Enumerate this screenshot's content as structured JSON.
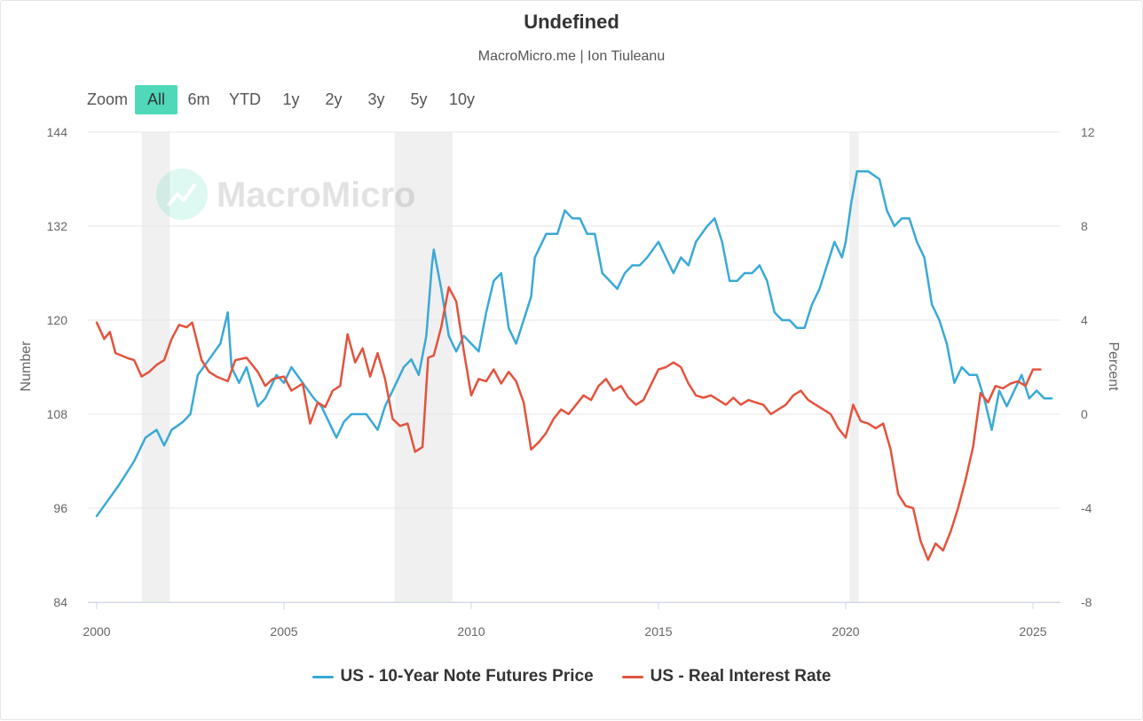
{
  "chart": {
    "title": "Undefined",
    "subtitle": "MacroMicro.me | Ion Tiuleanu",
    "watermark": "MacroMicro"
  },
  "zoom": {
    "label": "Zoom",
    "buttons": [
      "All",
      "6m",
      "YTD",
      "1y",
      "2y",
      "3y",
      "5y",
      "10y"
    ],
    "active": "All"
  },
  "colors": {
    "series_blue": "#3aa9d6",
    "series_red": "#e2533d",
    "zoom_active": "#4fd9b9",
    "recession": "#f0f0f0",
    "grid": "#e6e6e6"
  },
  "chart_data": {
    "type": "line",
    "x_axis": {
      "ticks": [
        "2000",
        "2005",
        "2010",
        "2015",
        "2020",
        "2025"
      ],
      "range": [
        2000.0,
        2025.7
      ]
    },
    "y_left": {
      "label": "Number",
      "ticks": [
        84,
        96,
        108,
        120,
        132,
        144
      ],
      "range": [
        84,
        144
      ]
    },
    "y_right": {
      "label": "Percent",
      "ticks": [
        -8,
        -4,
        0,
        4,
        8,
        12
      ],
      "range": [
        -8,
        12
      ]
    },
    "shaded_periods": [
      [
        2001.2,
        2001.95
      ],
      [
        2007.95,
        2009.5
      ],
      [
        2020.1,
        2020.35
      ]
    ],
    "legend_position": "bottom-center",
    "grid": true,
    "series": [
      {
        "name": "US - 10-Year Note Futures Price",
        "axis": "left",
        "color": "#3aa9d6",
        "points": [
          [
            2000.0,
            95
          ],
          [
            2000.3,
            97
          ],
          [
            2000.6,
            99
          ],
          [
            2001.0,
            102
          ],
          [
            2001.3,
            105
          ],
          [
            2001.6,
            106
          ],
          [
            2001.8,
            104
          ],
          [
            2002.0,
            106
          ],
          [
            2002.3,
            107
          ],
          [
            2002.5,
            108
          ],
          [
            2002.7,
            113
          ],
          [
            2003.0,
            115
          ],
          [
            2003.3,
            117
          ],
          [
            2003.5,
            121
          ],
          [
            2003.6,
            114
          ],
          [
            2003.8,
            112
          ],
          [
            2004.0,
            114
          ],
          [
            2004.3,
            109
          ],
          [
            2004.5,
            110
          ],
          [
            2004.8,
            113
          ],
          [
            2005.0,
            112
          ],
          [
            2005.2,
            114
          ],
          [
            2005.5,
            112
          ],
          [
            2005.8,
            110
          ],
          [
            2006.0,
            109
          ],
          [
            2006.2,
            107
          ],
          [
            2006.4,
            105
          ],
          [
            2006.6,
            107
          ],
          [
            2006.8,
            108
          ],
          [
            2007.0,
            108
          ],
          [
            2007.2,
            108
          ],
          [
            2007.5,
            106
          ],
          [
            2007.7,
            109
          ],
          [
            2007.9,
            111
          ],
          [
            2008.0,
            112
          ],
          [
            2008.2,
            114
          ],
          [
            2008.4,
            115
          ],
          [
            2008.6,
            113
          ],
          [
            2008.8,
            118
          ],
          [
            2008.95,
            127
          ],
          [
            2009.0,
            129
          ],
          [
            2009.2,
            124
          ],
          [
            2009.4,
            118
          ],
          [
            2009.6,
            116
          ],
          [
            2009.8,
            118
          ],
          [
            2010.0,
            117
          ],
          [
            2010.2,
            116
          ],
          [
            2010.4,
            121
          ],
          [
            2010.6,
            125
          ],
          [
            2010.8,
            126
          ],
          [
            2011.0,
            119
          ],
          [
            2011.2,
            117
          ],
          [
            2011.4,
            120
          ],
          [
            2011.6,
            123
          ],
          [
            2011.7,
            128
          ],
          [
            2011.9,
            130
          ],
          [
            2012.0,
            131
          ],
          [
            2012.3,
            131
          ],
          [
            2012.5,
            134
          ],
          [
            2012.7,
            133
          ],
          [
            2012.9,
            133
          ],
          [
            2013.1,
            131
          ],
          [
            2013.3,
            131
          ],
          [
            2013.5,
            126
          ],
          [
            2013.7,
            125
          ],
          [
            2013.9,
            124
          ],
          [
            2014.1,
            126
          ],
          [
            2014.3,
            127
          ],
          [
            2014.5,
            127
          ],
          [
            2014.7,
            128
          ],
          [
            2015.0,
            130
          ],
          [
            2015.2,
            128
          ],
          [
            2015.4,
            126
          ],
          [
            2015.6,
            128
          ],
          [
            2015.8,
            127
          ],
          [
            2016.0,
            130
          ],
          [
            2016.3,
            132
          ],
          [
            2016.5,
            133
          ],
          [
            2016.7,
            130
          ],
          [
            2016.9,
            125
          ],
          [
            2017.1,
            125
          ],
          [
            2017.3,
            126
          ],
          [
            2017.5,
            126
          ],
          [
            2017.7,
            127
          ],
          [
            2017.9,
            125
          ],
          [
            2018.1,
            121
          ],
          [
            2018.3,
            120
          ],
          [
            2018.5,
            120
          ],
          [
            2018.7,
            119
          ],
          [
            2018.9,
            119
          ],
          [
            2019.1,
            122
          ],
          [
            2019.3,
            124
          ],
          [
            2019.5,
            127
          ],
          [
            2019.7,
            130
          ],
          [
            2019.9,
            128
          ],
          [
            2020.0,
            130
          ],
          [
            2020.15,
            135
          ],
          [
            2020.3,
            139
          ],
          [
            2020.6,
            139
          ],
          [
            2020.9,
            138
          ],
          [
            2021.1,
            134
          ],
          [
            2021.3,
            132
          ],
          [
            2021.5,
            133
          ],
          [
            2021.7,
            133
          ],
          [
            2021.9,
            130
          ],
          [
            2022.1,
            128
          ],
          [
            2022.3,
            122
          ],
          [
            2022.5,
            120
          ],
          [
            2022.7,
            117
          ],
          [
            2022.9,
            112
          ],
          [
            2023.1,
            114
          ],
          [
            2023.3,
            113
          ],
          [
            2023.5,
            113
          ],
          [
            2023.7,
            110
          ],
          [
            2023.9,
            106
          ],
          [
            2024.1,
            111
          ],
          [
            2024.3,
            109
          ],
          [
            2024.5,
            111
          ],
          [
            2024.7,
            113
          ],
          [
            2024.9,
            110
          ],
          [
            2025.1,
            111
          ],
          [
            2025.3,
            110
          ],
          [
            2025.5,
            110
          ]
        ]
      },
      {
        "name": "US - Real Interest Rate",
        "axis": "right",
        "color": "#e2533d",
        "points": [
          [
            2000.0,
            3.9
          ],
          [
            2000.2,
            3.2
          ],
          [
            2000.35,
            3.5
          ],
          [
            2000.5,
            2.6
          ],
          [
            2000.8,
            2.4
          ],
          [
            2001.0,
            2.3
          ],
          [
            2001.2,
            1.6
          ],
          [
            2001.4,
            1.8
          ],
          [
            2001.6,
            2.1
          ],
          [
            2001.8,
            2.3
          ],
          [
            2002.0,
            3.2
          ],
          [
            2002.2,
            3.8
          ],
          [
            2002.4,
            3.7
          ],
          [
            2002.55,
            3.9
          ],
          [
            2002.8,
            2.3
          ],
          [
            2003.0,
            1.8
          ],
          [
            2003.2,
            1.6
          ],
          [
            2003.5,
            1.4
          ],
          [
            2003.7,
            2.3
          ],
          [
            2004.0,
            2.4
          ],
          [
            2004.3,
            1.8
          ],
          [
            2004.5,
            1.2
          ],
          [
            2004.7,
            1.5
          ],
          [
            2005.0,
            1.6
          ],
          [
            2005.2,
            1.0
          ],
          [
            2005.5,
            1.3
          ],
          [
            2005.7,
            -0.4
          ],
          [
            2005.9,
            0.5
          ],
          [
            2006.1,
            0.3
          ],
          [
            2006.3,
            1.0
          ],
          [
            2006.5,
            1.2
          ],
          [
            2006.7,
            3.4
          ],
          [
            2006.9,
            2.2
          ],
          [
            2007.1,
            2.8
          ],
          [
            2007.3,
            1.6
          ],
          [
            2007.5,
            2.6
          ],
          [
            2007.7,
            1.5
          ],
          [
            2007.9,
            -0.2
          ],
          [
            2008.1,
            -0.5
          ],
          [
            2008.3,
            -0.4
          ],
          [
            2008.5,
            -1.6
          ],
          [
            2008.7,
            -1.4
          ],
          [
            2008.85,
            2.4
          ],
          [
            2009.0,
            2.5
          ],
          [
            2009.2,
            3.7
          ],
          [
            2009.4,
            5.4
          ],
          [
            2009.6,
            4.8
          ],
          [
            2009.8,
            2.7
          ],
          [
            2010.0,
            0.8
          ],
          [
            2010.2,
            1.5
          ],
          [
            2010.4,
            1.4
          ],
          [
            2010.6,
            1.9
          ],
          [
            2010.8,
            1.3
          ],
          [
            2011.0,
            1.8
          ],
          [
            2011.2,
            1.4
          ],
          [
            2011.4,
            0.5
          ],
          [
            2011.6,
            -1.5
          ],
          [
            2011.8,
            -1.2
          ],
          [
            2012.0,
            -0.8
          ],
          [
            2012.2,
            -0.2
          ],
          [
            2012.4,
            0.2
          ],
          [
            2012.6,
            0.0
          ],
          [
            2012.8,
            0.4
          ],
          [
            2013.0,
            0.8
          ],
          [
            2013.2,
            0.6
          ],
          [
            2013.4,
            1.2
          ],
          [
            2013.6,
            1.5
          ],
          [
            2013.8,
            1.0
          ],
          [
            2014.0,
            1.2
          ],
          [
            2014.2,
            0.7
          ],
          [
            2014.4,
            0.4
          ],
          [
            2014.6,
            0.6
          ],
          [
            2015.0,
            1.9
          ],
          [
            2015.2,
            2.0
          ],
          [
            2015.4,
            2.2
          ],
          [
            2015.6,
            2.0
          ],
          [
            2015.8,
            1.3
          ],
          [
            2016.0,
            0.8
          ],
          [
            2016.2,
            0.7
          ],
          [
            2016.4,
            0.8
          ],
          [
            2016.6,
            0.6
          ],
          [
            2016.8,
            0.4
          ],
          [
            2017.0,
            0.7
          ],
          [
            2017.2,
            0.4
          ],
          [
            2017.4,
            0.6
          ],
          [
            2017.6,
            0.5
          ],
          [
            2017.8,
            0.4
          ],
          [
            2018.0,
            0.0
          ],
          [
            2018.2,
            0.2
          ],
          [
            2018.4,
            0.4
          ],
          [
            2018.6,
            0.8
          ],
          [
            2018.8,
            1.0
          ],
          [
            2019.0,
            0.6
          ],
          [
            2019.2,
            0.4
          ],
          [
            2019.4,
            0.2
          ],
          [
            2019.6,
            0.0
          ],
          [
            2019.8,
            -0.6
          ],
          [
            2020.0,
            -1.0
          ],
          [
            2020.2,
            0.4
          ],
          [
            2020.4,
            -0.3
          ],
          [
            2020.6,
            -0.4
          ],
          [
            2020.8,
            -0.6
          ],
          [
            2021.0,
            -0.4
          ],
          [
            2021.2,
            -1.5
          ],
          [
            2021.4,
            -3.4
          ],
          [
            2021.6,
            -3.9
          ],
          [
            2021.8,
            -4.0
          ],
          [
            2022.0,
            -5.4
          ],
          [
            2022.2,
            -6.2
          ],
          [
            2022.4,
            -5.5
          ],
          [
            2022.6,
            -5.8
          ],
          [
            2022.8,
            -5.0
          ],
          [
            2023.0,
            -4.0
          ],
          [
            2023.2,
            -2.8
          ],
          [
            2023.4,
            -1.4
          ],
          [
            2023.6,
            0.9
          ],
          [
            2023.8,
            0.5
          ],
          [
            2024.0,
            1.2
          ],
          [
            2024.2,
            1.1
          ],
          [
            2024.4,
            1.3
          ],
          [
            2024.6,
            1.4
          ],
          [
            2024.8,
            1.2
          ],
          [
            2025.0,
            1.9
          ],
          [
            2025.2,
            1.9
          ]
        ]
      }
    ]
  }
}
